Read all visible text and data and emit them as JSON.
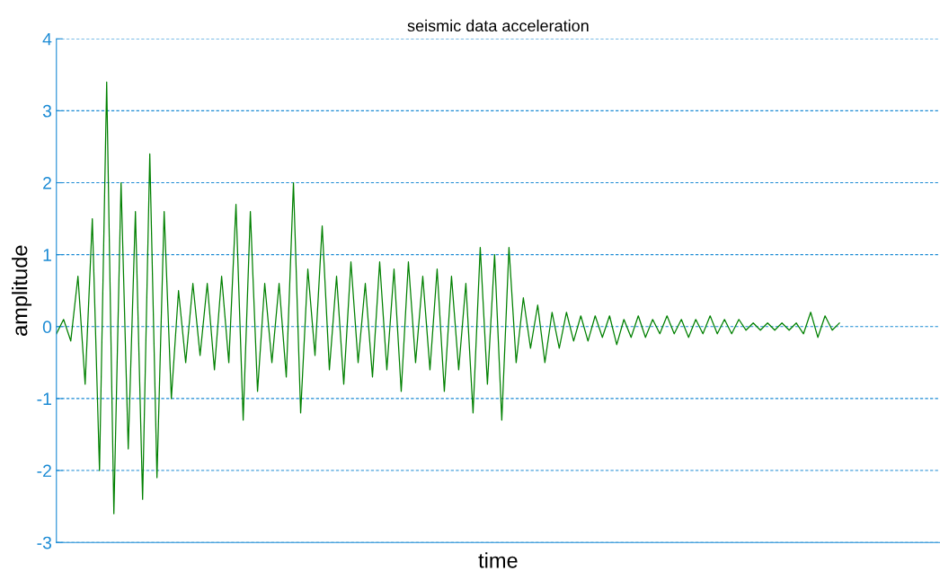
{
  "chart_data": {
    "type": "line",
    "title": "seismic data acceleration",
    "xlabel": "time",
    "ylabel": "amplitude",
    "categories": [
      null,
      null,
      null,
      null,
      null,
      null,
      null,
      null,
      null,
      null,
      null,
      null,
      null,
      null,
      null,
      null,
      null,
      null,
      null,
      null,
      null,
      null,
      null,
      null,
      null,
      null,
      null,
      null,
      null,
      null,
      null,
      null,
      null,
      null,
      null,
      null,
      null,
      null,
      null,
      null,
      null,
      null,
      null,
      null,
      null,
      null,
      null,
      null,
      null,
      null,
      null,
      null,
      null,
      null,
      null,
      null,
      null,
      null,
      null,
      null,
      null,
      null,
      null,
      null,
      null,
      null,
      null,
      null,
      null,
      null,
      null,
      null,
      null,
      null,
      null,
      null,
      null,
      null,
      null,
      null,
      null,
      null,
      null,
      null,
      null,
      null,
      null,
      null,
      null,
      null,
      null,
      null,
      null,
      null,
      null,
      null,
      null,
      null,
      null,
      null,
      null,
      null,
      null,
      null,
      null,
      null,
      null,
      null,
      null,
      null,
      null,
      null,
      null,
      null,
      null,
      null,
      null,
      null,
      null,
      null,
      null,
      null,
      null,
      null
    ],
    "series": [
      {
        "color": "#008000",
        "values": [
          -0.1,
          0.1,
          -0.2,
          0.7,
          -0.8,
          1.5,
          -2.0,
          3.4,
          -2.6,
          2.0,
          -1.7,
          1.6,
          -2.4,
          2.4,
          -2.1,
          1.6,
          -1.0,
          0.5,
          -0.5,
          0.6,
          -0.4,
          0.6,
          -0.6,
          0.7,
          -0.5,
          1.7,
          -1.3,
          1.6,
          -0.9,
          0.6,
          -0.5,
          0.6,
          -0.7,
          2.0,
          -1.2,
          0.8,
          -0.4,
          1.4,
          -0.6,
          0.7,
          -0.8,
          0.9,
          -0.5,
          0.6,
          -0.7,
          0.9,
          -0.6,
          0.8,
          -0.9,
          0.9,
          -0.5,
          0.7,
          -0.6,
          0.8,
          -0.9,
          0.7,
          -0.6,
          0.6,
          -1.2,
          1.1,
          -0.8,
          1.0,
          -1.3,
          1.1,
          -0.5,
          0.4,
          -0.3,
          0.3,
          -0.5,
          0.2,
          -0.3,
          0.2,
          -0.2,
          0.15,
          -0.2,
          0.15,
          -0.15,
          0.15,
          -0.25,
          0.1,
          -0.15,
          0.15,
          -0.15,
          0.1,
          -0.1,
          0.15,
          -0.1,
          0.1,
          -0.15,
          0.1,
          -0.1,
          0.15,
          -0.1,
          0.1,
          -0.1,
          0.1,
          -0.05,
          0.05,
          -0.05,
          0.05,
          -0.05,
          0.05,
          -0.05,
          0.05,
          -0.1,
          0.2,
          -0.15,
          0.15,
          -0.05,
          0.05,
          null,
          null,
          null,
          null,
          null,
          null,
          null,
          null,
          null,
          null,
          null,
          null,
          null,
          null
        ]
      }
    ],
    "ylim": [
      -3,
      4
    ],
    "yticks": [
      -3,
      -2,
      -1,
      0,
      1,
      2,
      3,
      4
    ],
    "grid": "y",
    "tick_labels": "y",
    "marker": "none",
    "line_style": "solid"
  }
}
